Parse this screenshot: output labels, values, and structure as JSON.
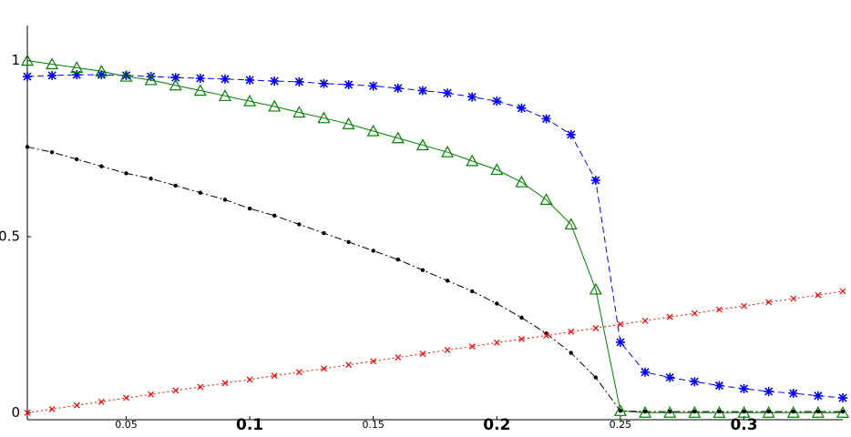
{
  "chart_data": {
    "type": "line",
    "x": [
      0.01,
      0.02,
      0.03,
      0.04,
      0.05,
      0.06,
      0.07,
      0.08,
      0.09,
      0.1,
      0.11,
      0.12,
      0.13,
      0.14,
      0.15,
      0.16,
      0.17,
      0.18,
      0.19,
      0.2,
      0.21,
      0.22,
      0.23,
      0.24,
      0.25,
      0.26,
      0.27,
      0.28,
      0.29,
      0.3,
      0.31,
      0.32,
      0.33,
      0.34
    ],
    "series": [
      {
        "color": "#0000ff",
        "marker": "star",
        "dash": "dashed",
        "values": [
          0.955,
          0.958,
          0.96,
          0.96,
          0.958,
          0.955,
          0.952,
          0.95,
          0.948,
          0.945,
          0.942,
          0.94,
          0.935,
          0.932,
          0.928,
          0.922,
          0.915,
          0.908,
          0.897,
          0.885,
          0.865,
          0.835,
          0.79,
          0.66,
          0.2,
          0.115,
          0.1,
          0.088,
          0.077,
          0.068,
          0.06,
          0.055,
          0.048,
          0.042
        ]
      },
      {
        "color": "#008000",
        "marker": "triangle",
        "dash": "solid",
        "values": [
          1.0,
          0.99,
          0.98,
          0.97,
          0.955,
          0.945,
          0.93,
          0.915,
          0.9,
          0.885,
          0.87,
          0.853,
          0.837,
          0.82,
          0.8,
          0.78,
          0.76,
          0.74,
          0.715,
          0.69,
          0.655,
          0.605,
          0.535,
          0.35,
          0.005,
          0,
          0,
          0,
          0,
          0,
          0,
          0,
          0,
          0
        ]
      },
      {
        "color": "#000000",
        "marker": "dot",
        "dash": "dashdot",
        "values": [
          0.755,
          0.74,
          0.72,
          0.7,
          0.68,
          0.665,
          0.645,
          0.625,
          0.605,
          0.58,
          0.56,
          0.535,
          0.51,
          0.485,
          0.46,
          0.435,
          0.405,
          0.375,
          0.345,
          0.31,
          0.27,
          0.225,
          0.17,
          0.1,
          0.005,
          0.003,
          0.003,
          0.003,
          0.003,
          0.003,
          0.003,
          0.003,
          0.003,
          0.003
        ]
      },
      {
        "color": "#ff0000",
        "marker": "x",
        "dash": "dotted",
        "values": [
          0,
          0.01,
          0.021,
          0.031,
          0.042,
          0.052,
          0.063,
          0.073,
          0.084,
          0.094,
          0.105,
          0.115,
          0.125,
          0.136,
          0.146,
          0.157,
          0.167,
          0.178,
          0.188,
          0.199,
          0.209,
          0.219,
          0.23,
          0.24,
          0.251,
          0.261,
          0.272,
          0.282,
          0.293,
          0.303,
          0.314,
          0.324,
          0.334,
          0.345
        ]
      }
    ],
    "xlim": [
      0.01,
      0.34
    ],
    "xticks": [
      0.05,
      0.1,
      0.15,
      0.2,
      0.25,
      0.3
    ],
    "ylim": [
      -0.02,
      1.1
    ],
    "yticks": [
      0,
      0.5,
      1
    ],
    "grid": false
  }
}
